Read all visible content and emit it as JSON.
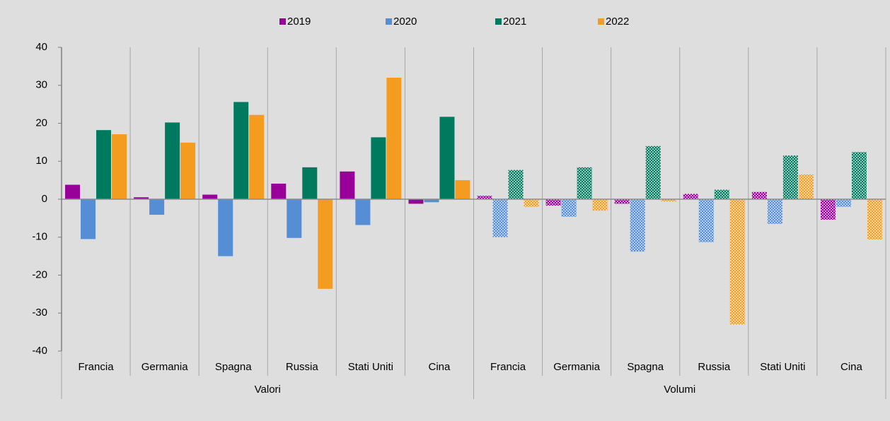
{
  "chart_data": {
    "type": "bar",
    "categories": [
      "Francia",
      "Germania",
      "Spagna",
      "Russia",
      "Stati Uniti",
      "Cina",
      "Francia",
      "Germania",
      "Spagna",
      "Russia",
      "Stati Uniti",
      "Cina"
    ],
    "groups": [
      {
        "name": "Valori"
      },
      {
        "name": "Volumi",
        "pattern": "dots"
      }
    ],
    "series": [
      {
        "name": "2019",
        "color": "#990099",
        "values": [
          3.8,
          0.5,
          1.2,
          4.1,
          7.3,
          -1.2,
          0.9,
          -1.7,
          -1.2,
          1.4,
          1.9,
          -5.4
        ]
      },
      {
        "name": "2020",
        "color": "#558ed5",
        "values": [
          -10.5,
          -4.1,
          -15.0,
          -10.2,
          -6.8,
          -0.8,
          -10.0,
          -4.6,
          -13.8,
          -11.3,
          -6.5,
          -2.0
        ]
      },
      {
        "name": "2021",
        "color": "#007a5e",
        "values": [
          18.2,
          20.2,
          25.6,
          8.4,
          16.3,
          21.7,
          7.7,
          8.4,
          14.0,
          2.5,
          11.5,
          12.4
        ]
      },
      {
        "name": "2022",
        "color": "#f39c1f",
        "values": [
          17.1,
          14.9,
          22.2,
          -23.6,
          32.0,
          5.0,
          -2.0,
          -3.0,
          -0.6,
          -33.0,
          6.5,
          -10.6
        ]
      }
    ],
    "ylim": [
      -40,
      40
    ],
    "yticks": [
      -40,
      -30,
      -20,
      -10,
      0,
      10,
      20,
      30,
      40
    ],
    "legend": "top"
  }
}
